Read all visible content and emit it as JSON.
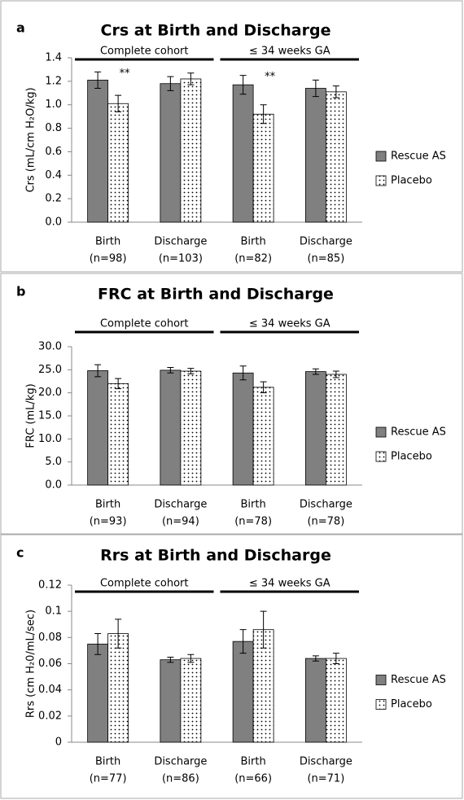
{
  "chart_data": [
    {
      "type": "bar",
      "panel": "a",
      "title": "Crs at Birth and Discharge",
      "y_label": "Crs (mL/cm H₂O/kg)",
      "categories": [
        "Birth",
        "Discharge",
        "Birth",
        "Discharge"
      ],
      "n_labels": [
        "(n=98)",
        "(n=103)",
        "(n=82)",
        "(n=85)"
      ],
      "groups": [
        "Complete cohort",
        "≤ 34 weeks GA"
      ],
      "series": [
        {
          "name": "Rescue AS",
          "color": "#808080",
          "values": [
            1.21,
            1.18,
            1.17,
            1.14
          ],
          "errors": [
            0.07,
            0.06,
            0.08,
            0.07
          ]
        },
        {
          "name": "Placebo",
          "color": "#ffffff",
          "pattern": "dots",
          "values": [
            1.01,
            1.22,
            0.92,
            1.11
          ],
          "errors": [
            0.07,
            0.05,
            0.08,
            0.05
          ],
          "annotations": [
            "**",
            null,
            "**",
            null
          ]
        }
      ],
      "ylim": [
        0,
        1.4
      ],
      "yticks": [
        {
          "value": 0,
          "label": "0.0"
        },
        0.2,
        0.4,
        0.6,
        0.8,
        {
          "value": 1,
          "label": "1.0"
        },
        1.2,
        1.4
      ],
      "legend": "right"
    },
    {
      "type": "bar",
      "panel": "b",
      "title": "FRC at Birth and Discharge",
      "y_label": "FRC (mL/kg)",
      "categories": [
        "Birth",
        "Discharge",
        "Birth",
        "Discharge"
      ],
      "n_labels": [
        "(n=93)",
        "(n=94)",
        "(n=78)",
        "(n=78)"
      ],
      "groups": [
        "Complete cohort",
        "≤ 34 weeks GA"
      ],
      "series": [
        {
          "name": "Rescue AS",
          "color": "#808080",
          "values": [
            24.8,
            24.9,
            24.3,
            24.6
          ],
          "errors": [
            1.3,
            0.6,
            1.5,
            0.6
          ]
        },
        {
          "name": "Placebo",
          "color": "#ffffff",
          "pattern": "dots",
          "values": [
            22.0,
            24.7,
            21.2,
            24.0
          ],
          "errors": [
            1.1,
            0.6,
            1.2,
            0.7
          ]
        }
      ],
      "ylim": [
        0,
        30
      ],
      "yticks": [
        {
          "value": 0,
          "label": "0.0"
        },
        {
          "value": 5,
          "label": "5.0"
        },
        {
          "value": 10,
          "label": "10.0"
        },
        {
          "value": 15,
          "label": "15.0"
        },
        {
          "value": 20,
          "label": "20.0"
        },
        {
          "value": 25,
          "label": "25.0"
        },
        {
          "value": 30,
          "label": "30.0"
        }
      ],
      "legend": "right"
    },
    {
      "type": "bar",
      "panel": "c",
      "title": "Rrs at Birth and Discharge",
      "y_label": "Rrs (cm H₂0/mL/sec)",
      "categories": [
        "Birth",
        "Discharge",
        "Birth",
        "Discharge"
      ],
      "n_labels": [
        "(n=77)",
        "(n=86)",
        "(n=66)",
        "(n=71)"
      ],
      "groups": [
        "Complete cohort",
        "≤ 34 weeks GA"
      ],
      "series": [
        {
          "name": "Rescue AS",
          "color": "#808080",
          "values": [
            0.075,
            0.063,
            0.077,
            0.064
          ],
          "errors": [
            0.008,
            0.002,
            0.009,
            0.002
          ]
        },
        {
          "name": "Placebo",
          "color": "#ffffff",
          "pattern": "dots",
          "values": [
            0.083,
            0.064,
            0.086,
            0.064
          ],
          "errors": [
            0.011,
            0.003,
            0.014,
            0.004
          ]
        }
      ],
      "ylim": [
        0,
        0.12
      ],
      "yticks": [
        0,
        0.02,
        0.04,
        0.06,
        0.08,
        0.1,
        0.12
      ],
      "legend": "right"
    }
  ]
}
